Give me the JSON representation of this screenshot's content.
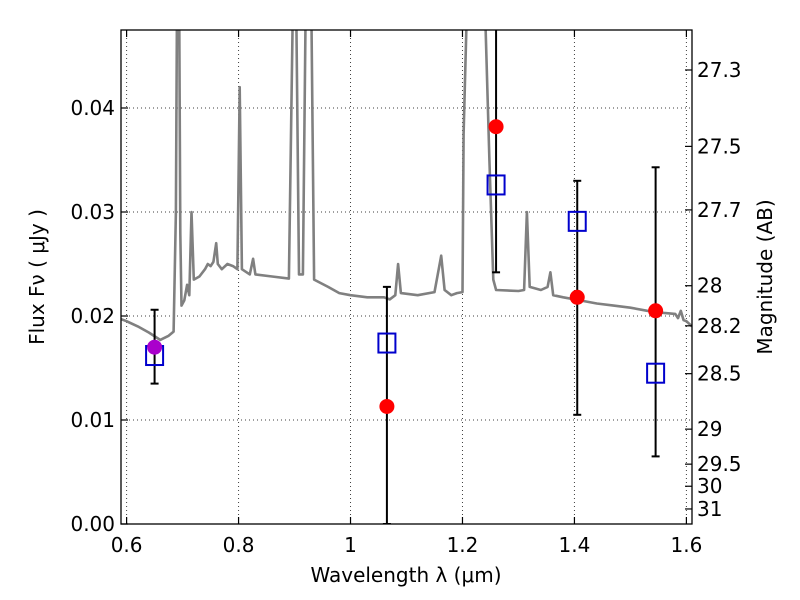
{
  "chart_data": {
    "type": "scatter",
    "xlabel": "Wavelength  λ (μm)",
    "ylabel": "Flux  Fν  ( μJy )",
    "y2label": "Magnitude (AB)",
    "xlim": [
      0.59,
      1.61
    ],
    "ylim": [
      0.0,
      0.0475
    ],
    "x_ticks": [
      0.6,
      0.8,
      1.0,
      1.2,
      1.4,
      1.6
    ],
    "x_tick_labels": [
      "0.6",
      "0.8",
      "1",
      "1.2",
      "1.4",
      "1.6"
    ],
    "y_ticks": [
      0.0,
      0.01,
      0.02,
      0.03,
      0.04
    ],
    "y_tick_labels": [
      "0.00",
      "0.01",
      "0.02",
      "0.03",
      "0.04"
    ],
    "y2_ticks": [
      {
        "label": "27.3",
        "mag": 27.3
      },
      {
        "label": "27.5",
        "mag": 27.5
      },
      {
        "label": "27.7",
        "mag": 27.7
      },
      {
        "label": "28",
        "mag": 28.0
      },
      {
        "label": "28.2",
        "mag": 28.2
      },
      {
        "label": "28.5",
        "mag": 28.5
      },
      {
        "label": "29",
        "mag": 29.0
      },
      {
        "label": "29.5",
        "mag": 29.5
      },
      {
        "label": "30",
        "mag": 30.0
      },
      {
        "label": "31",
        "mag": 31.0
      }
    ],
    "grid": true,
    "colors": {
      "observed": "#ff0000",
      "model": "#0000cc",
      "reference": "#aa00cc",
      "spectrum": "#808080",
      "errorbar": "#000000"
    },
    "spectrum": [
      [
        0.59,
        0.0197
      ],
      [
        0.6,
        0.0195
      ],
      [
        0.62,
        0.019
      ],
      [
        0.64,
        0.0184
      ],
      [
        0.66,
        0.0177
      ],
      [
        0.675,
        0.0181
      ],
      [
        0.684,
        0.0185
      ],
      [
        0.688,
        0.03
      ],
      [
        0.69,
        0.05
      ],
      [
        0.694,
        0.05
      ],
      [
        0.696,
        0.028
      ],
      [
        0.698,
        0.021
      ],
      [
        0.703,
        0.0215
      ],
      [
        0.708,
        0.023
      ],
      [
        0.712,
        0.022
      ],
      [
        0.716,
        0.03
      ],
      [
        0.72,
        0.0235
      ],
      [
        0.73,
        0.0238
      ],
      [
        0.74,
        0.0245
      ],
      [
        0.745,
        0.025
      ],
      [
        0.75,
        0.0248
      ],
      [
        0.755,
        0.0252
      ],
      [
        0.76,
        0.027
      ],
      [
        0.763,
        0.025
      ],
      [
        0.77,
        0.0245
      ],
      [
        0.78,
        0.025
      ],
      [
        0.79,
        0.0248
      ],
      [
        0.798,
        0.0245
      ],
      [
        0.802,
        0.042
      ],
      [
        0.806,
        0.0245
      ],
      [
        0.82,
        0.024
      ],
      [
        0.826,
        0.0255
      ],
      [
        0.83,
        0.024
      ],
      [
        0.86,
        0.0238
      ],
      [
        0.89,
        0.0236
      ],
      [
        0.897,
        0.05
      ],
      [
        0.903,
        0.05
      ],
      [
        0.908,
        0.024
      ],
      [
        0.915,
        0.024
      ],
      [
        0.92,
        0.05
      ],
      [
        0.93,
        0.05
      ],
      [
        0.935,
        0.0235
      ],
      [
        0.96,
        0.0228
      ],
      [
        0.98,
        0.0222
      ],
      [
        1.0,
        0.022
      ],
      [
        1.03,
        0.0218
      ],
      [
        1.06,
        0.0218
      ],
      [
        1.07,
        0.0216
      ],
      [
        1.08,
        0.022
      ],
      [
        1.085,
        0.025
      ],
      [
        1.09,
        0.0222
      ],
      [
        1.12,
        0.022
      ],
      [
        1.15,
        0.0223
      ],
      [
        1.162,
        0.0258
      ],
      [
        1.168,
        0.0225
      ],
      [
        1.18,
        0.022
      ],
      [
        1.19,
        0.0222
      ],
      [
        1.2,
        0.0223
      ],
      [
        1.202,
        0.0375
      ],
      [
        1.208,
        0.05
      ],
      [
        1.225,
        0.05
      ],
      [
        1.232,
        0.05
      ],
      [
        1.24,
        0.05
      ],
      [
        1.248,
        0.035
      ],
      [
        1.255,
        0.0235
      ],
      [
        1.26,
        0.0225
      ],
      [
        1.3,
        0.0224
      ],
      [
        1.31,
        0.0225
      ],
      [
        1.315,
        0.03
      ],
      [
        1.32,
        0.0228
      ],
      [
        1.34,
        0.0225
      ],
      [
        1.352,
        0.0228
      ],
      [
        1.357,
        0.0242
      ],
      [
        1.362,
        0.022
      ],
      [
        1.38,
        0.0218
      ],
      [
        1.41,
        0.0215
      ],
      [
        1.44,
        0.0212
      ],
      [
        1.47,
        0.021
      ],
      [
        1.5,
        0.0208
      ],
      [
        1.53,
        0.0205
      ],
      [
        1.56,
        0.0203
      ],
      [
        1.58,
        0.0202
      ],
      [
        1.585,
        0.0198
      ],
      [
        1.59,
        0.0205
      ],
      [
        1.595,
        0.0196
      ],
      [
        1.6,
        0.0195
      ],
      [
        1.61,
        0.019
      ]
    ],
    "observed": [
      {
        "x": 1.065,
        "y": 0.0113,
        "yerr_low": 0.0113,
        "yerr_high": 0.0115
      },
      {
        "x": 1.26,
        "y": 0.0382,
        "yerr_low": 0.014,
        "yerr_high": 0.0118
      },
      {
        "x": 1.405,
        "y": 0.0218,
        "yerr_low": 0.0113,
        "yerr_high": 0.0112
      },
      {
        "x": 1.545,
        "y": 0.0205,
        "yerr_low": 0.014,
        "yerr_high": 0.0138
      }
    ],
    "reference": [
      {
        "x": 0.65,
        "y": 0.017,
        "yerr_low": 0.0035,
        "yerr_high": 0.0036
      }
    ],
    "model": [
      {
        "x": 0.65,
        "y": 0.0162
      },
      {
        "x": 1.065,
        "y": 0.0174
      },
      {
        "x": 1.26,
        "y": 0.0326
      },
      {
        "x": 1.405,
        "y": 0.0291
      },
      {
        "x": 1.545,
        "y": 0.0145
      }
    ]
  }
}
